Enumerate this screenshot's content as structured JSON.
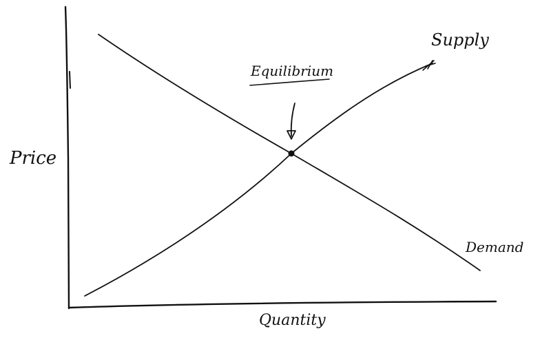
{
  "diagram": {
    "axes": {
      "x_label": "Quantity",
      "y_label": "Price"
    },
    "curves": {
      "supply_label": "Supply",
      "demand_label": "Demand"
    },
    "annotation": {
      "equilibrium_label": "Equilibrium"
    },
    "ink_color": "#111111"
  }
}
